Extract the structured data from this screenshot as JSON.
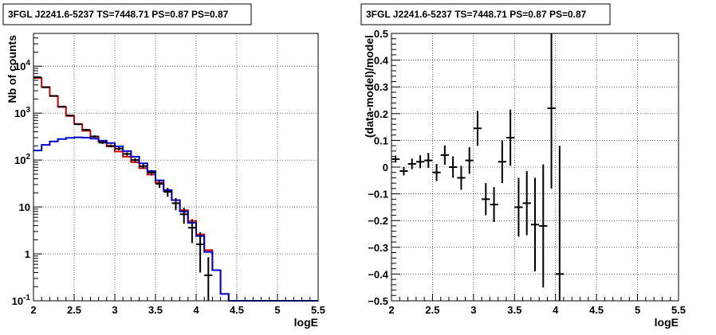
{
  "chart_data": [
    {
      "type": "line",
      "title": "3FGL J2241.6-5237 TS=7448.71 PS=0.87 PS=0.87",
      "xlabel": "logE",
      "ylabel": "Nb of counts",
      "xlim": [
        2,
        5.5
      ],
      "ylim": [
        0.1,
        50000
      ],
      "yscale": "log",
      "grid": true,
      "xticks": [
        "2",
        "2.5",
        "3",
        "3.5",
        "4",
        "4.5",
        "5",
        "5.5"
      ],
      "yticks": [
        {
          "value": 0.1,
          "label": "10^-1"
        },
        {
          "value": 1,
          "label": "1"
        },
        {
          "value": 10,
          "label": "10"
        },
        {
          "value": 100,
          "label": "10^2"
        },
        {
          "value": 1000,
          "label": "10^3"
        },
        {
          "value": 10000,
          "label": "10^4"
        }
      ],
      "bin_edges": [
        2.0,
        2.1,
        2.2,
        2.3,
        2.4,
        2.5,
        2.6,
        2.7,
        2.8,
        2.9,
        3.0,
        3.1,
        3.2,
        3.3,
        3.4,
        3.5,
        3.6,
        3.7,
        3.8,
        3.9,
        4.0,
        4.1,
        4.2,
        4.3,
        4.4,
        4.5,
        4.6,
        4.7,
        4.8,
        4.9,
        5.0,
        5.1,
        5.2,
        5.3,
        5.4,
        5.5
      ],
      "series": [
        {
          "color": "#d00000",
          "style": "step",
          "values": [
            5600,
            3600,
            2300,
            1350,
            870,
            590,
            420,
            315,
            245,
            195,
            152,
            118,
            90,
            67,
            49,
            33,
            22,
            14,
            8.5,
            5,
            2.6,
            1.2,
            0.45,
            0.14,
            0.1,
            0.1,
            0.1,
            0.1,
            0.1,
            0.1,
            0.1,
            0.1,
            0.1,
            0.1,
            0.1
          ]
        },
        {
          "color": "#0000d0",
          "style": "step",
          "values": [
            160,
            210,
            250,
            280,
            298,
            305,
            300,
            285,
            260,
            230,
            195,
            155,
            118,
            85,
            58,
            37,
            23,
            14,
            8,
            4.6,
            2.4,
            1.1,
            0.45,
            0.14,
            0.1,
            0.1,
            0.1,
            0.1,
            0.1,
            0.1,
            0.1,
            0.1,
            0.1,
            0.1,
            0.1
          ]
        },
        {
          "color": "#000000",
          "style": "errorbar",
          "x": [
            2.05,
            2.15,
            2.25,
            2.35,
            2.45,
            2.55,
            2.65,
            2.75,
            2.85,
            2.95,
            3.05,
            3.15,
            3.25,
            3.35,
            3.45,
            3.55,
            3.65,
            3.75,
            3.85,
            3.95,
            4.05,
            4.15
          ],
          "y": [
            5800,
            3550,
            2330,
            1380,
            890,
            580,
            440,
            318,
            235,
            200,
            175,
            135,
            100,
            74,
            54,
            31,
            21,
            12,
            7,
            3.6,
            1.6,
            0.35
          ],
          "yerr_low": [
            75,
            60,
            48,
            37,
            30,
            24,
            21,
            18,
            15,
            14,
            13,
            11.5,
            10,
            8.5,
            7.3,
            5.5,
            4.5,
            3.5,
            2.6,
            1.9,
            1.2,
            0.3
          ],
          "yerr_high": [
            75,
            60,
            48,
            37,
            30,
            24,
            21,
            18,
            15,
            14,
            13,
            11.5,
            10,
            8.5,
            7.3,
            5.5,
            4.5,
            3.5,
            2.6,
            1.9,
            1.3,
            0.5
          ]
        }
      ]
    },
    {
      "type": "scatter",
      "title": "3FGL J2241.6-5237 TS=7448.71 PS=0.87 PS=0.87",
      "xlabel": "logE",
      "ylabel": "(data-model)/model",
      "xlim": [
        2,
        5.5
      ],
      "ylim": [
        -0.5,
        0.5
      ],
      "grid": true,
      "xticks": [
        "2",
        "2.5",
        "3",
        "3.5",
        "4",
        "4.5",
        "5",
        "5.5"
      ],
      "yticks": [
        "−0.5",
        "−0.4",
        "−0.3",
        "−0.2",
        "−0.1",
        "0",
        "0.1",
        "0.2",
        "0.3",
        "0.4",
        "0.5"
      ],
      "series": [
        {
          "color": "#000000",
          "style": "errorbar",
          "x": [
            2.05,
            2.15,
            2.25,
            2.35,
            2.45,
            2.55,
            2.65,
            2.75,
            2.85,
            2.95,
            3.05,
            3.15,
            3.25,
            3.35,
            3.45,
            3.55,
            3.65,
            3.75,
            3.85,
            3.95,
            4.05
          ],
          "y": [
            0.03,
            -0.015,
            0.012,
            0.02,
            0.025,
            -0.02,
            0.045,
            0.0,
            -0.04,
            0.025,
            0.145,
            -0.12,
            -0.14,
            0.02,
            0.11,
            -0.15,
            -0.135,
            -0.215,
            -0.22,
            0.22,
            -0.4
          ],
          "yerr": [
            0.013,
            0.016,
            0.02,
            0.024,
            0.028,
            0.032,
            0.036,
            0.04,
            0.045,
            0.05,
            0.065,
            0.06,
            0.065,
            0.08,
            0.105,
            0.11,
            0.12,
            0.175,
            0.23,
            0.3,
            0.48
          ]
        }
      ]
    }
  ]
}
